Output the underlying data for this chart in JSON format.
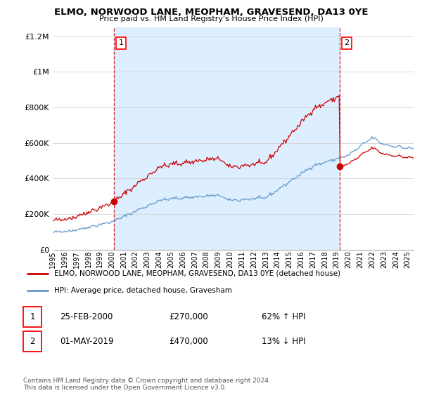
{
  "title": "ELMO, NORWOOD LANE, MEOPHAM, GRAVESEND, DA13 0YE",
  "subtitle": "Price paid vs. HM Land Registry's House Price Index (HPI)",
  "property_label": "ELMO, NORWOOD LANE, MEOPHAM, GRAVESEND, DA13 0YE (detached house)",
  "hpi_label": "HPI: Average price, detached house, Gravesham",
  "sale1_date": "25-FEB-2000",
  "sale1_price": 270000,
  "sale1_hpi": "62% ↑ HPI",
  "sale2_date": "01-MAY-2019",
  "sale2_price": 470000,
  "sale2_hpi": "13% ↓ HPI",
  "footnote": "Contains HM Land Registry data © Crown copyright and database right 2024.\nThis data is licensed under the Open Government Licence v3.0.",
  "property_color": "#cc0000",
  "hpi_color": "#6699cc",
  "fill_color": "#ddeeff",
  "ylim": [
    0,
    1250000
  ],
  "xlim_start": 1995.0,
  "xlim_end": 2025.5
}
